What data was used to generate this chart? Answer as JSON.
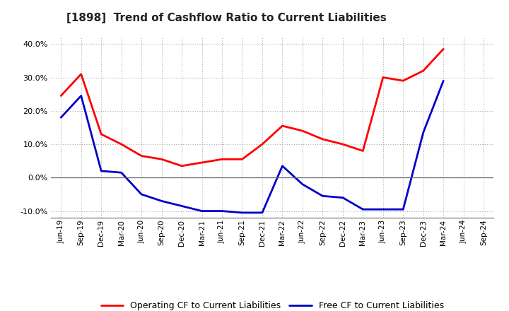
{
  "title": "[1898]  Trend of Cashflow Ratio to Current Liabilities",
  "x_labels": [
    "Jun-19",
    "Sep-19",
    "Dec-19",
    "Mar-20",
    "Jun-20",
    "Sep-20",
    "Dec-20",
    "Mar-21",
    "Jun-21",
    "Sep-21",
    "Dec-21",
    "Mar-22",
    "Jun-22",
    "Sep-22",
    "Dec-22",
    "Mar-23",
    "Jun-23",
    "Sep-23",
    "Dec-23",
    "Mar-24",
    "Jun-24",
    "Sep-24"
  ],
  "op_cf": [
    24.5,
    31.0,
    13.0,
    10.0,
    6.5,
    5.5,
    3.5,
    4.5,
    5.5,
    5.5,
    10.0,
    15.5,
    14.0,
    11.5,
    10.0,
    8.0,
    30.0,
    29.0,
    32.0,
    38.5,
    null,
    null
  ],
  "free_cf": [
    18.0,
    24.5,
    2.0,
    1.5,
    -5.0,
    -7.0,
    -8.5,
    -10.0,
    -10.0,
    -10.5,
    -10.5,
    3.5,
    -2.0,
    -5.5,
    -6.0,
    -9.5,
    -9.5,
    -9.5,
    13.5,
    29.0,
    null,
    null
  ],
  "ylim": [
    -12,
    42
  ],
  "yticks": [
    -10.0,
    0.0,
    10.0,
    20.0,
    30.0,
    40.0
  ],
  "operating_color": "#FF0000",
  "free_color": "#0000CC",
  "grid_color": "#AAAAAA",
  "zero_line_color": "#666666",
  "background_color": "#FFFFFF",
  "legend_operating": "Operating CF to Current Liabilities",
  "legend_free": "Free CF to Current Liabilities",
  "title_fontsize": 11,
  "tick_fontsize": 8,
  "legend_fontsize": 9
}
